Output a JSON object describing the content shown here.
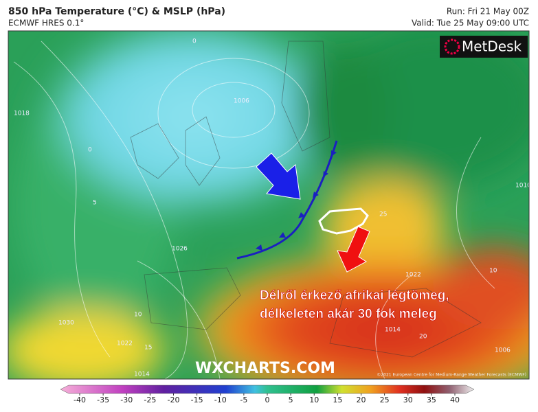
{
  "header": {
    "title": "850 hPa Temperature (°C) & MSLP (hPa)",
    "model": "ECMWF HRES 0.1°",
    "run": "Run: Fri 21 May 00Z",
    "valid": "Valid: Tue 25 May 09:00 UTC"
  },
  "logo": "MetDesk",
  "watermark": "WXCHARTS.COM",
  "copyright": "©2021 European Centre for Medium-Range Weather Forecasts (ECMWF)",
  "annotation": [
    "Délről érkező afrikai légtömeg,",
    "délkeleten akár 30 fok meleg"
  ],
  "map_labels": [
    "1006",
    "1018",
    "1026",
    "1022",
    "1030",
    "1014",
    "1010",
    "1006",
    "1022",
    "1014",
    "0",
    "5",
    "10",
    "15",
    "20",
    "25",
    "0",
    "10"
  ],
  "colorbar": {
    "ticks": [
      -40,
      -35,
      -30,
      -25,
      -20,
      -15,
      -10,
      -5,
      0,
      5,
      10,
      15,
      20,
      25,
      30,
      35,
      40
    ],
    "lim": [
      -40,
      40
    ]
  }
}
